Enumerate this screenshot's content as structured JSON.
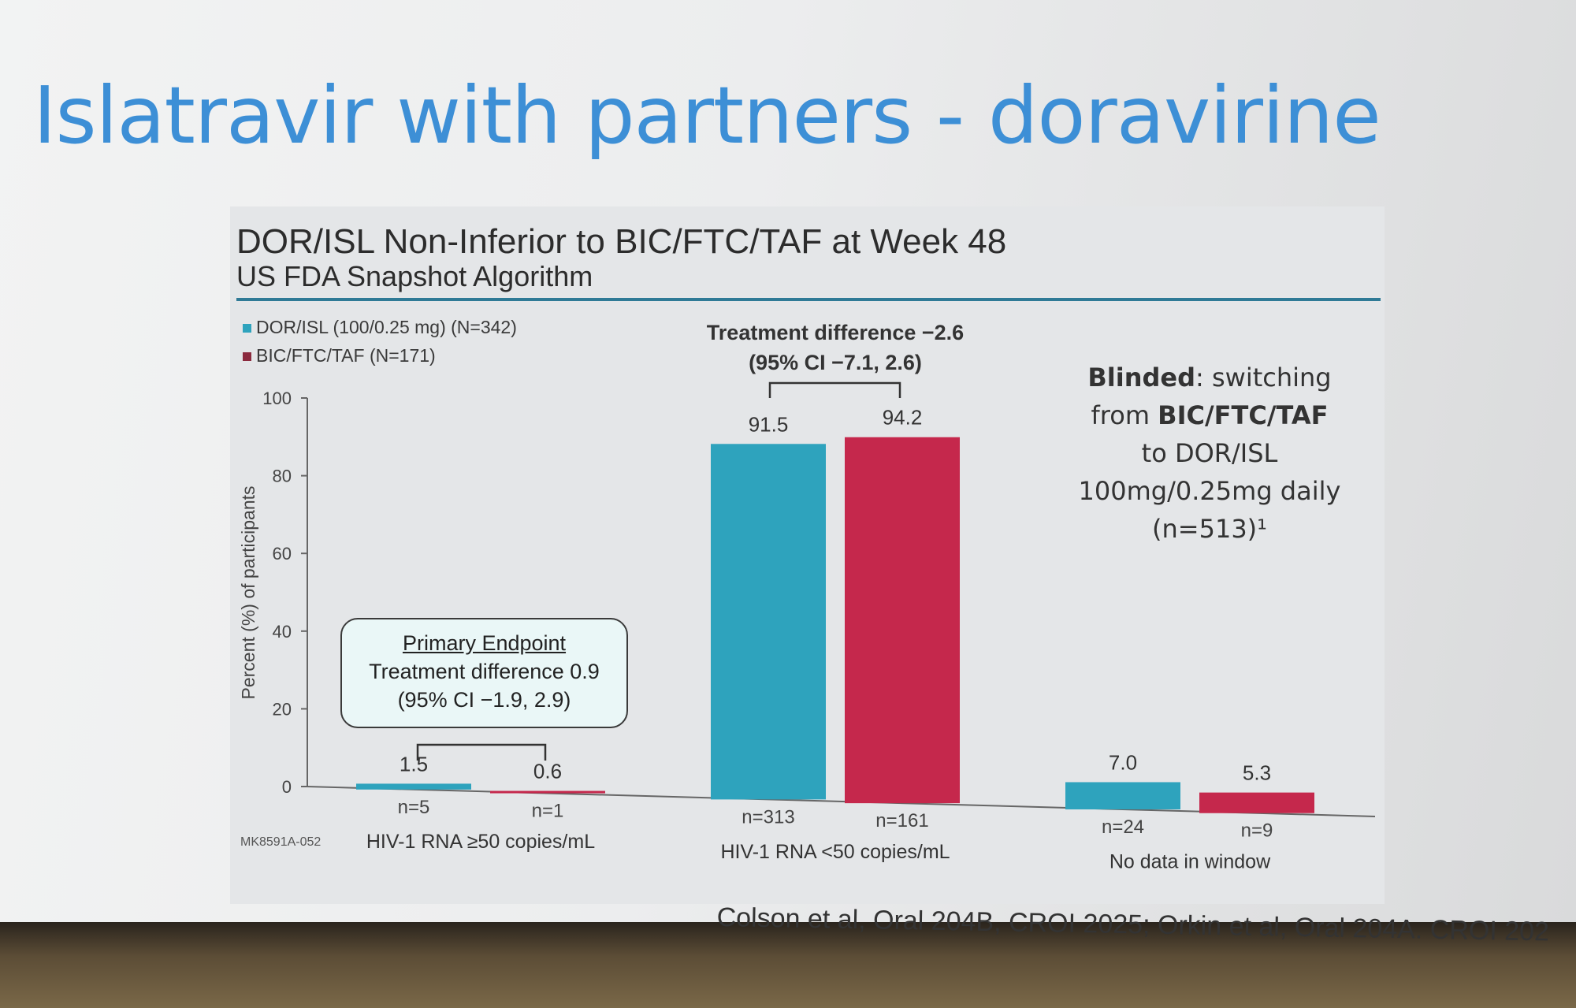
{
  "slide": {
    "title": "Islatravir with partners - doravirine",
    "citation": "Colson et al, Oral 204B, CROI 2025; Orkin et al, Oral 204A. CROI 202"
  },
  "panel": {
    "title": "DOR/ISL Non-Inferior to BIC/FTC/TAF at Week 48",
    "subtitle": "US FDA Snapshot Algorithm",
    "code": "MK8591A-052"
  },
  "annotations": {
    "top_line1": "Treatment difference −2.6",
    "top_line2": "(95% CI −7.1, 2.6)",
    "endpoint_head": "Primary Endpoint",
    "endpoint_line1": "Treatment difference 0.9",
    "endpoint_line2": "(95% CI −1.9, 2.9)",
    "blinded_bold": "Blinded",
    "blinded_rest": ": switching",
    "blinded_from": "from ",
    "blinded_from_bold": "BIC/FTC/TAF",
    "blinded_line3": "to DOR/ISL",
    "blinded_line4": "100mg/0.25mg daily",
    "blinded_line5": "(n=513)¹"
  },
  "chart_data": {
    "type": "bar",
    "title": "DOR/ISL Non-Inferior to BIC/FTC/TAF at Week 48",
    "subtitle": "US FDA Snapshot Algorithm",
    "ylabel": "Percent (%) of participants",
    "xlabel": "",
    "ylim": [
      0,
      100
    ],
    "yticks": [
      0,
      20,
      40,
      60,
      80,
      100
    ],
    "categories": [
      "HIV-1 RNA ≥50 copies/mL",
      "HIV-1 RNA <50 copies/mL",
      "No data in window"
    ],
    "series": [
      {
        "name": "DOR/ISL (100/0.25 mg) (N=342)",
        "color": "#2ea3bd",
        "values": [
          1.5,
          91.5,
          7.0
        ],
        "labels": [
          "1.5",
          "91.5",
          "7.0"
        ],
        "n": [
          "n=5",
          "n=313",
          "n=24"
        ]
      },
      {
        "name": "BIC/FTC/TAF (N=171)",
        "color": "#c5284c",
        "values": [
          0.6,
          94.2,
          5.3
        ],
        "labels": [
          "0.6",
          "94.2",
          "5.3"
        ],
        "n": [
          "n=1",
          "n=161",
          "n=9"
        ]
      }
    ],
    "grid": false,
    "legend_position": "top-left"
  }
}
